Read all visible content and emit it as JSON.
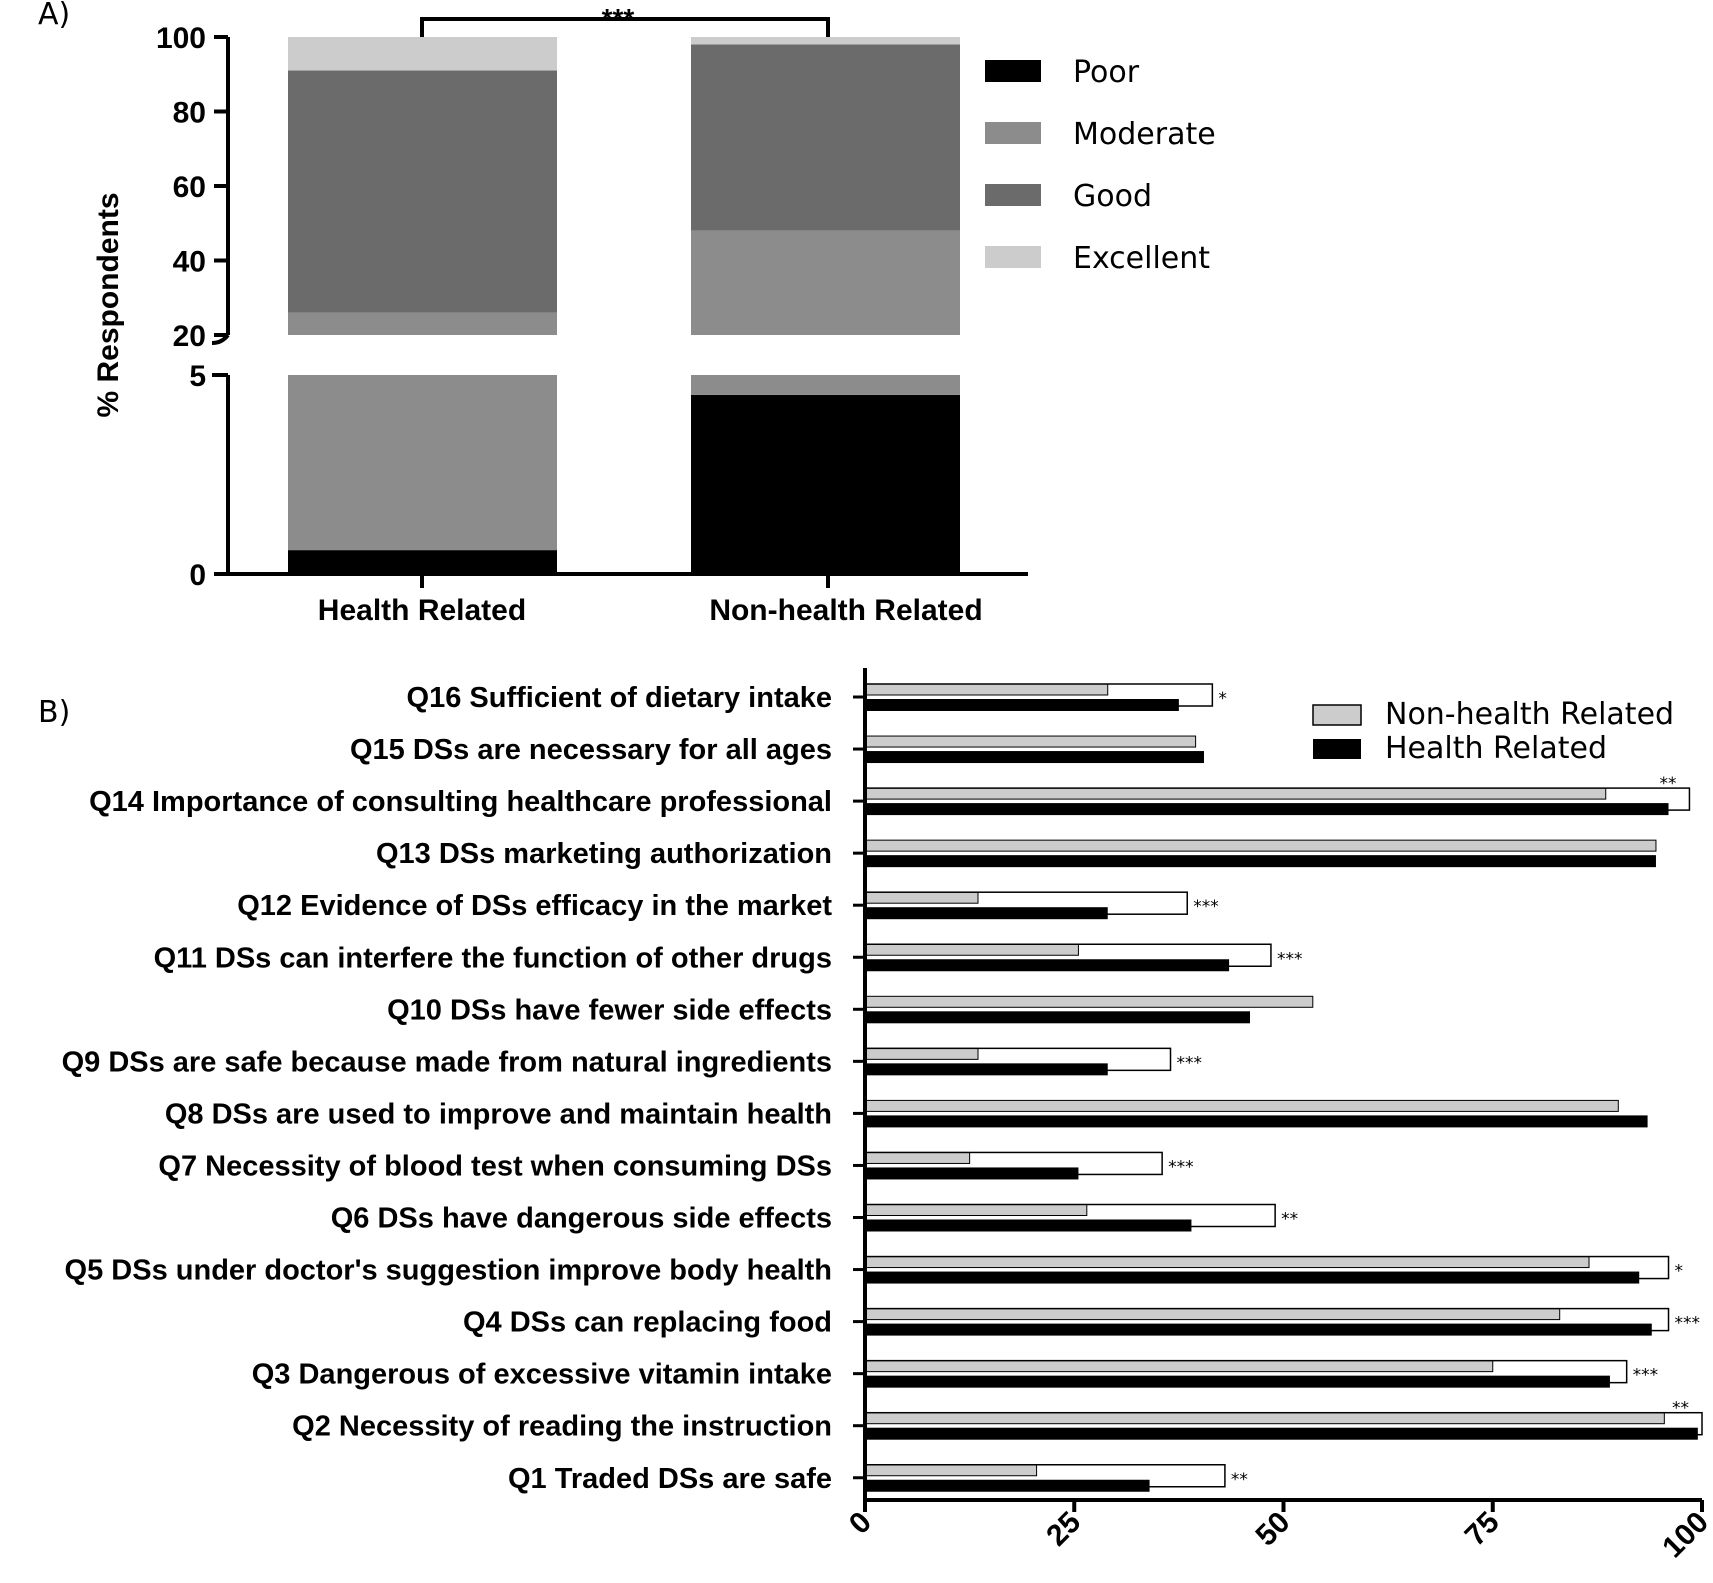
{
  "chart_data": [
    {
      "panel": "A)",
      "type": "bar",
      "stacked": true,
      "ylabel": "% Respondents",
      "y_axis_broken": true,
      "y_ticks_upper": [
        "20",
        "40",
        "60",
        "80",
        "100"
      ],
      "y_ticks_lower": [
        "0",
        "5"
      ],
      "categories": [
        "Health Related",
        "Non-health Related"
      ],
      "series": [
        {
          "name": "Poor",
          "color": "#000000",
          "values": [
            0.6,
            4.5
          ]
        },
        {
          "name": "Moderate",
          "color": "#8c8c8c",
          "values": [
            25.4,
            43.5
          ]
        },
        {
          "name": "Good",
          "color": "#6b6b6b",
          "values": [
            65,
            50
          ]
        },
        {
          "name": "Excellent",
          "color": "#cccccc",
          "values": [
            9,
            2
          ]
        }
      ],
      "significance": "***",
      "legend": [
        "Poor",
        "Moderate",
        "Good",
        "Excellent"
      ]
    },
    {
      "panel": "B)",
      "type": "bar",
      "orientation": "horizontal",
      "xlim": [
        0,
        100
      ],
      "x_ticks": [
        "0",
        "25",
        "50",
        "75",
        "100"
      ],
      "categories": [
        "Q16 Sufficient of dietary intake",
        "Q15 DSs are necessary for all ages",
        "Q14 Importance of consulting healthcare professional",
        "Q13 DSs marketing authorization",
        "Q12 Evidence of DSs efficacy in the market",
        "Q11 DSs can interfere the function of other drugs",
        "Q10 DSs have fewer side effects",
        "Q9 DSs are safe because made from natural ingredients",
        "Q8 DSs are used to improve and maintain health",
        "Q7 Necessity of blood test when consuming DSs",
        "Q6 DSs have dangerous side effects",
        "Q5 DSs under doctor's suggestion  improve body health",
        "Q4 DSs can replacing food",
        "Q3 Dangerous of excessive vitamin intake",
        "Q2 Necessity of reading the instruction",
        "Q1 Traded DSs are safe"
      ],
      "series": [
        {
          "name": "Non-health Related",
          "color": "#cccccc",
          "values": [
            29,
            39.5,
            88.5,
            94.5,
            13.5,
            25.5,
            53.5,
            13.5,
            90,
            12.5,
            26.5,
            86.5,
            83,
            75,
            95.5,
            20.5
          ]
        },
        {
          "name": "Health Related",
          "color": "#000000",
          "values": [
            37.5,
            40.5,
            96,
            94.5,
            29,
            43.5,
            46,
            29,
            93.5,
            25.5,
            39,
            92.5,
            94,
            89,
            99.5,
            34
          ]
        }
      ],
      "significance": [
        "*",
        "",
        "**",
        "",
        "***",
        "***",
        "",
        "***",
        "",
        "***",
        "**",
        "*",
        "***",
        "***",
        "**",
        "**"
      ],
      "sig_bracket_end": [
        41.5,
        null,
        98.5,
        null,
        38.5,
        48.5,
        null,
        36.5,
        null,
        35.5,
        49,
        96,
        96,
        91,
        100,
        43
      ]
    }
  ]
}
